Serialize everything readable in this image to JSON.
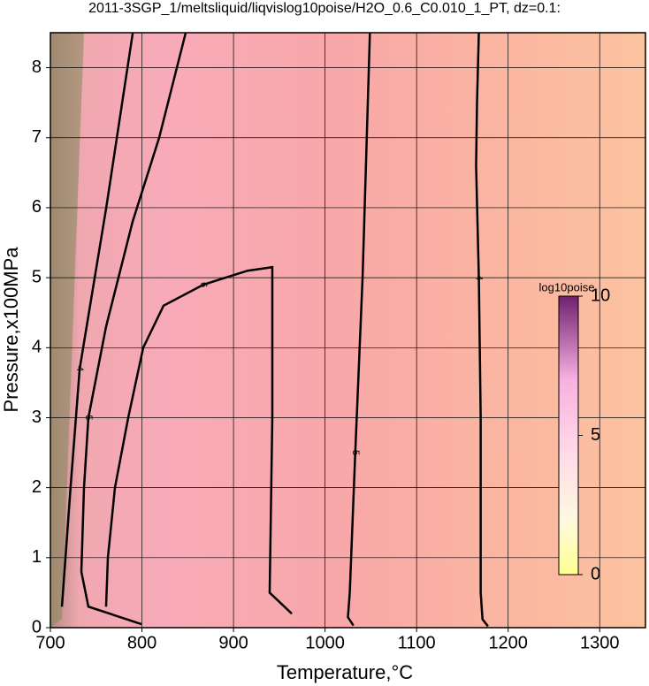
{
  "chart_data": {
    "type": "contour",
    "title": "2011-3SGP_1/meltsliquid/liqvislog10poise/H2O_0.6_C0.010_1_PT, dz=0.1:",
    "xlabel": "Temperature,°C",
    "ylabel": "Pressure,x100MPa",
    "xlim": [
      700,
      1350
    ],
    "xticks": [
      700,
      800,
      900,
      1000,
      1100,
      1200,
      1300
    ],
    "ylim": [
      0,
      8.5
    ],
    "yticks": [
      0,
      1,
      2,
      3,
      4,
      5,
      6,
      7,
      8
    ],
    "grid": true,
    "contours": [
      {
        "level": 4,
        "x": [
          712.6,
          722,
          732,
          761,
          790
        ],
        "y": [
          0.3,
          2,
          3.7,
          6,
          8.5
        ]
      },
      {
        "level": 5,
        "x": [
          799.5,
          741.5,
          733.8,
          736.7,
          741.5,
          760.8,
          789.8,
          818.8,
          847.8
        ],
        "y": [
          0.05,
          0.3,
          0.8,
          2,
          3,
          4.3,
          5.8,
          7,
          8.5
        ]
      },
      {
        "level": 6,
        "x": [
          760.8,
          762.8,
          770.5,
          785,
          801.4,
          823.6,
          867.1,
          915.4,
          942.4,
          942.4,
          939.5,
          963.7
        ],
        "y": [
          0.3,
          1,
          2,
          3,
          4,
          4.6,
          4.9,
          5.1,
          5.15,
          3,
          0.5,
          0.2
        ]
      },
      {
        "level": 5,
        "x": [
          1031,
          1025,
          1027,
          1033,
          1041,
          1049
        ],
        "y": [
          0.03,
          0.15,
          0.5,
          2.5,
          5,
          8.5
        ]
      },
      {
        "level": 4,
        "x": [
          1178,
          1172,
          1170,
          1170,
          1168,
          1165,
          1166,
          1168
        ],
        "y": [
          0.02,
          0.12,
          0.5,
          3,
          5,
          6.6,
          7.5,
          8.5
        ]
      }
    ],
    "colorbar": {
      "label": "log10poise",
      "lim": [
        0,
        10
      ],
      "ticks": [
        0,
        5,
        10
      ]
    }
  }
}
